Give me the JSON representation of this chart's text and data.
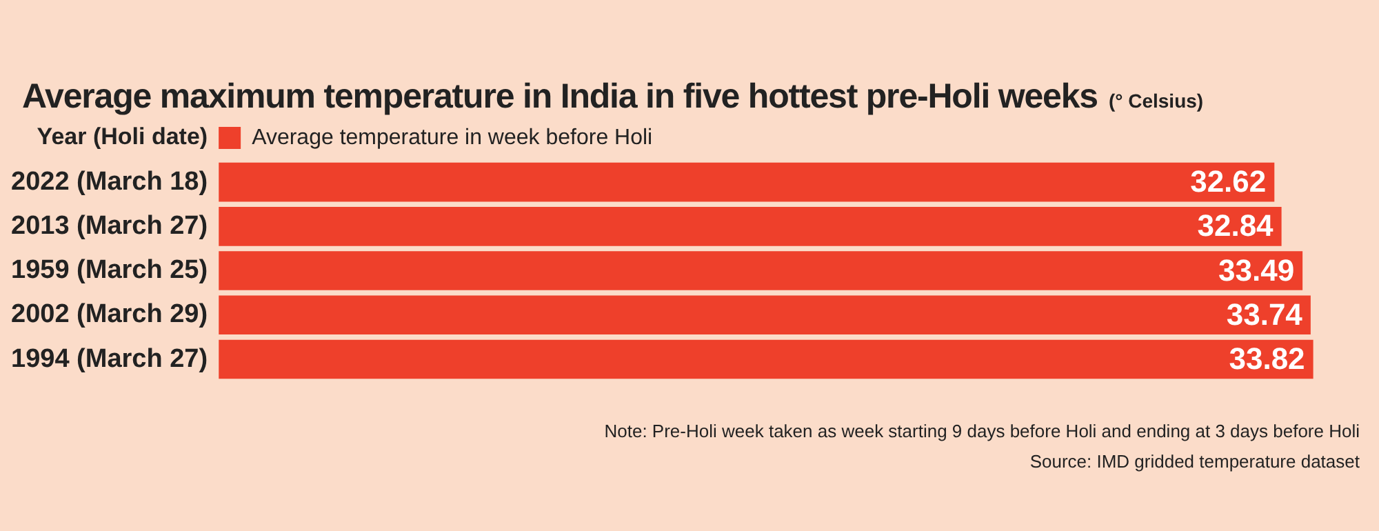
{
  "chart_data": {
    "type": "bar",
    "orientation": "horizontal",
    "title": "Average maximum temperature in India in five hottest pre-Holi weeks",
    "subtitle": "(° Celsius)",
    "ylabel": "Year (Holi date)",
    "categories": [
      "2022 (March 18)",
      "2013 (March 27)",
      "1959 (March 25)",
      "2002 (March 29)",
      "1994 (March 27)"
    ],
    "series": [
      {
        "name": "Average temperature in week before Holi",
        "color": "#ee402b",
        "values": [
          32.62,
          32.84,
          33.49,
          33.74,
          33.82
        ]
      }
    ],
    "tick_labels": "y",
    "grid": false,
    "legend": "top left",
    "data_labels": true,
    "annotations": [
      "Note: Pre-Holi week taken as week starting 9 days before Holi and ending at 3 days before Holi",
      "Source: IMD gridded temperature dataset"
    ]
  }
}
